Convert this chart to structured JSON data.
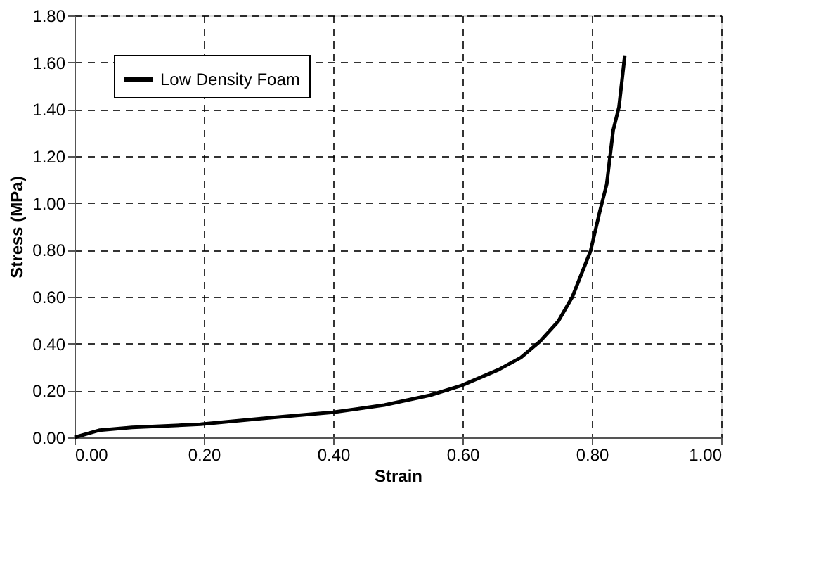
{
  "chart_data": {
    "type": "line",
    "xlabel": "Strain",
    "ylabel": "Stress (MPa)",
    "x": [
      0,
      0.039,
      0.089,
      0.195,
      0.3,
      0.4,
      0.479,
      0.55,
      0.598,
      0.656,
      0.69,
      0.72,
      0.748,
      0.77,
      0.798,
      0.812,
      0.823,
      0.833,
      0.842,
      0.851
    ],
    "series": [
      {
        "name": "Low Density Foam",
        "color": "#000000",
        "values": [
          0,
          0.031,
          0.043,
          0.056,
          0.083,
          0.107,
          0.138,
          0.18,
          0.221,
          0.289,
          0.34,
          0.41,
          0.495,
          0.6,
          0.795,
          0.96,
          1.08,
          1.31,
          1.41,
          1.63
        ]
      }
    ],
    "xlim": [
      0,
      1
    ],
    "xticks": [
      {
        "value": 0,
        "label": "0.00"
      },
      {
        "value": 0.2,
        "label": "0.20"
      },
      {
        "value": 0.4,
        "label": "0.40"
      },
      {
        "value": 0.6,
        "label": "0.60"
      },
      {
        "value": 0.8,
        "label": "0.80"
      },
      {
        "value": 1,
        "label": "1.00"
      }
    ],
    "ylim": [
      0,
      1.8
    ],
    "yticks": [
      {
        "value": 0,
        "label": "0.00"
      },
      {
        "value": 0.2,
        "label": "0.20"
      },
      {
        "value": 0.4,
        "label": "0.40"
      },
      {
        "value": 0.6,
        "label": "0.60"
      },
      {
        "value": 0.8,
        "label": "0.80"
      },
      {
        "value": 1.0,
        "label": "1.00"
      },
      {
        "value": 1.2,
        "label": "1.20"
      },
      {
        "value": 1.4,
        "label": "1.40"
      },
      {
        "value": 1.6,
        "label": "1.60"
      },
      {
        "value": 1.8,
        "label": "1.80"
      }
    ],
    "grid": true,
    "legend": "top left",
    "line_style": "solid",
    "marker": "none"
  }
}
